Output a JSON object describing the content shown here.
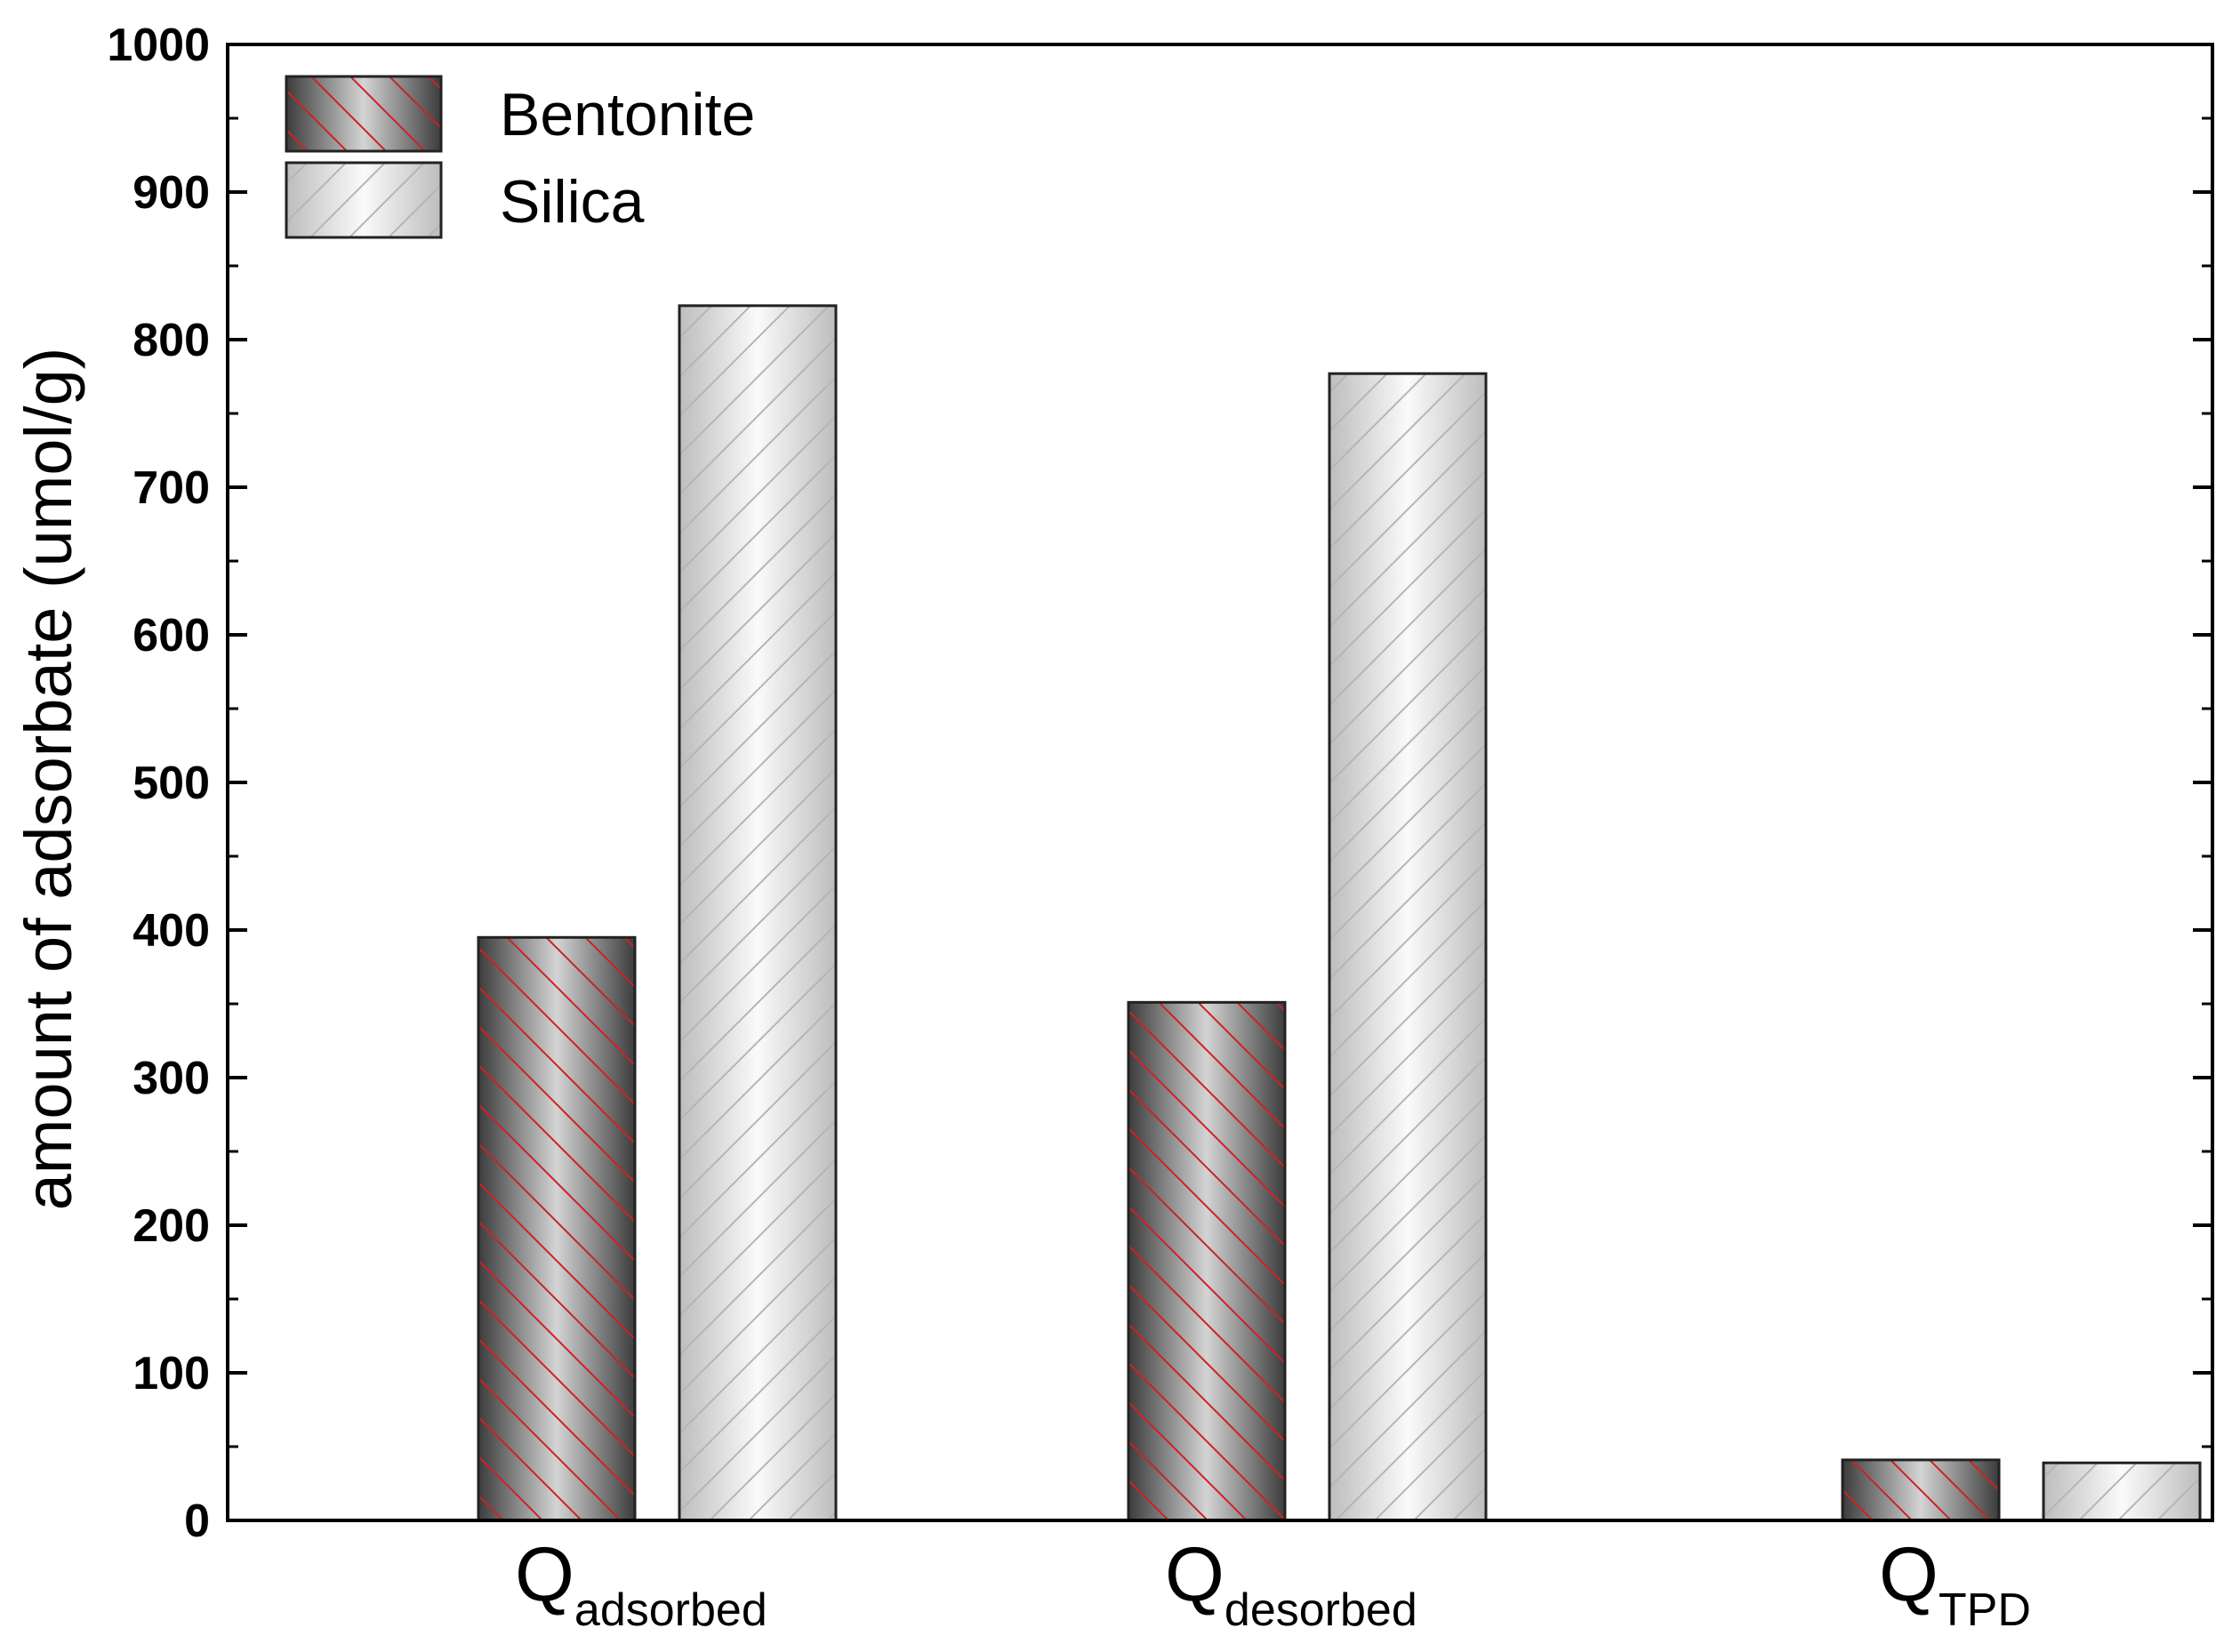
{
  "chart_data": {
    "type": "bar",
    "categories": [
      {
        "main": "Q",
        "sub": "adsorbed"
      },
      {
        "main": "Q",
        "sub": "desorbed"
      },
      {
        "main": "Q",
        "sub": "TPD"
      }
    ],
    "series": [
      {
        "name": "Bentonite",
        "values": [
          395,
          351,
          41
        ],
        "style": "dark-hatch",
        "hatch_color": "#cc2222"
      },
      {
        "name": "Silica",
        "values": [
          823,
          777,
          39
        ],
        "style": "light-hatch",
        "hatch_color": "#b5b5b5"
      }
    ],
    "ylabel": "amount of adsorbate (umol/g)",
    "ylim": [
      0,
      1000
    ],
    "yticks": [
      0,
      100,
      200,
      300,
      400,
      500,
      600,
      700,
      800,
      900,
      1000
    ],
    "legend_position": "top-left",
    "grid": false
  }
}
